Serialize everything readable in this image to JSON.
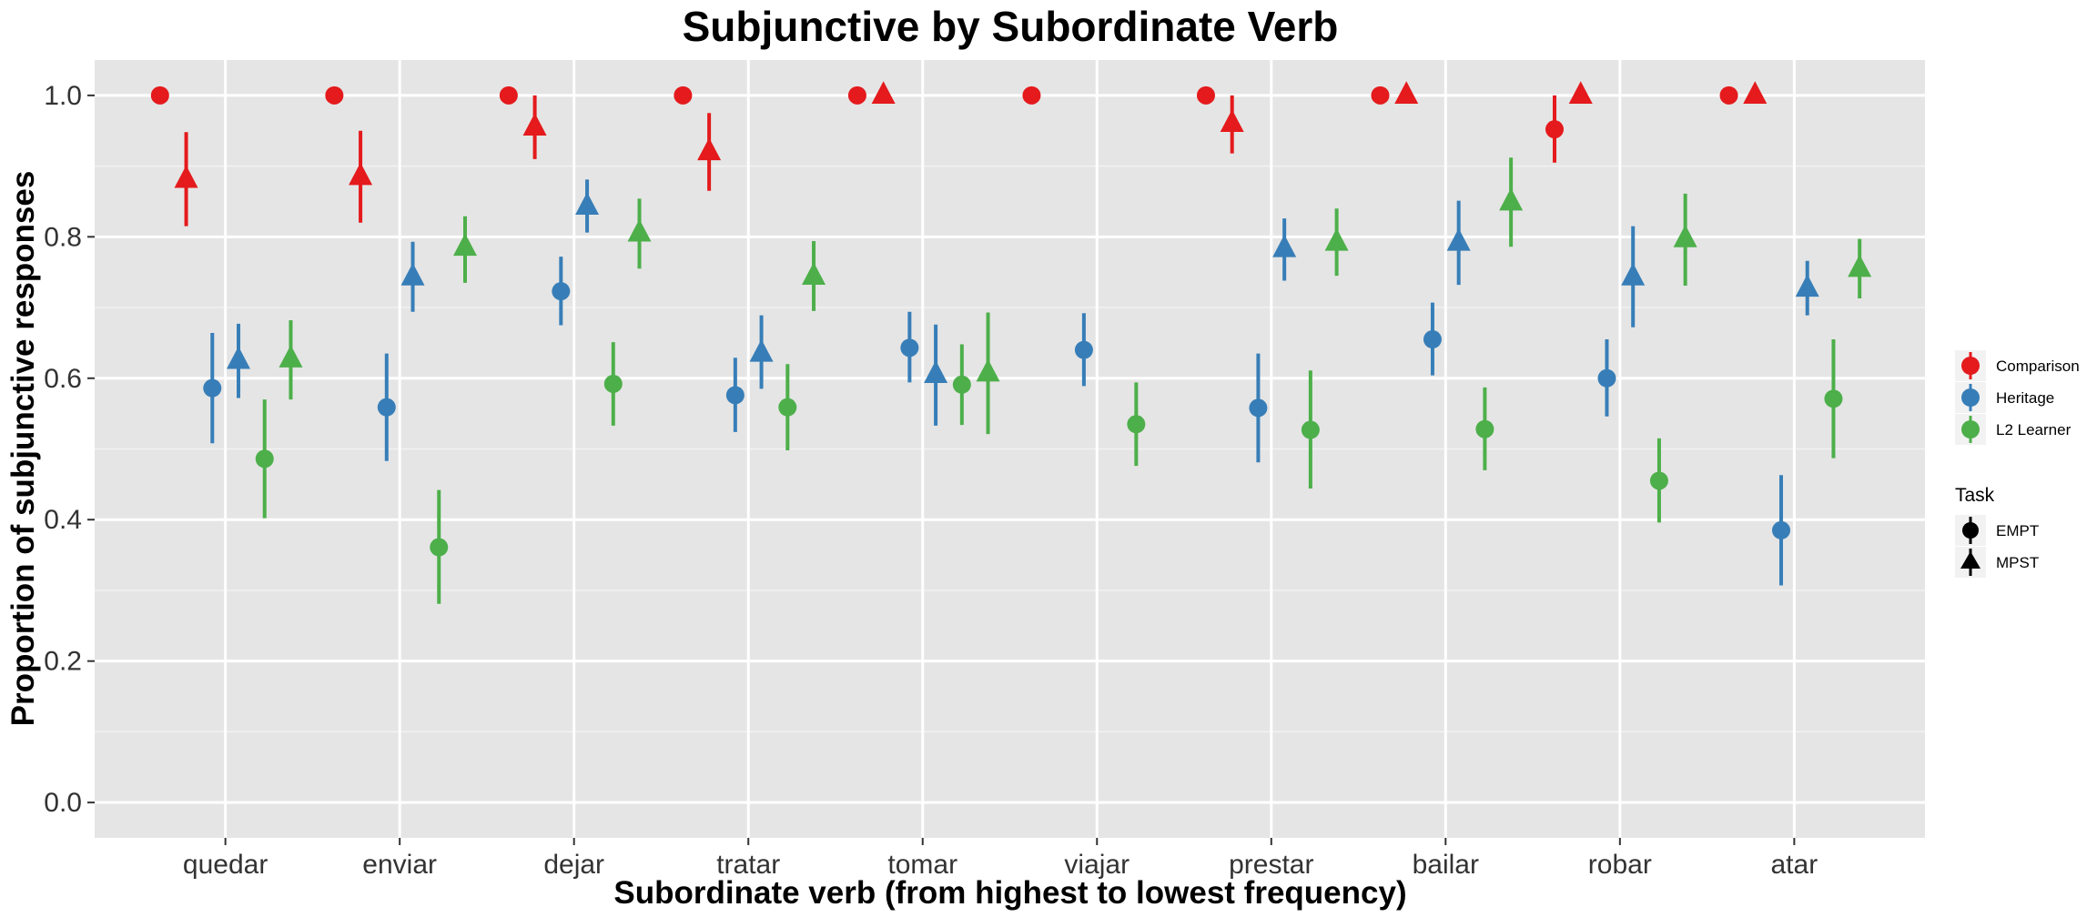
{
  "chart_data": {
    "type": "scatter",
    "title": "Subjunctive by Subordinate Verb",
    "xlabel": "Subordinate verb (from highest to lowest frequency)",
    "ylabel": "Proportion of subjunctive responses",
    "ylim": [
      -0.05,
      1.05
    ],
    "yticks": [
      "0.0",
      "0.2",
      "0.4",
      "0.6",
      "0.8",
      "1.0"
    ],
    "grid": true,
    "legend_position": "right",
    "categories": [
      "quedar",
      "enviar",
      "dejar",
      "tratar",
      "tomar",
      "viajar",
      "prestar",
      "bailar",
      "robar",
      "atar"
    ],
    "groups": [
      {
        "name": "Comparison",
        "color": "#e41a1c"
      },
      {
        "name": "Heritage",
        "color": "#377eb8"
      },
      {
        "name": "L2 Learner",
        "color": "#4daf4a"
      }
    ],
    "tasks": [
      {
        "name": "EMPT",
        "shape": "circle"
      },
      {
        "name": "MPST",
        "shape": "triangle"
      }
    ],
    "legend_task_title": "Task",
    "series": [
      {
        "group": "Comparison",
        "task": "EMPT",
        "values": [
          1.0,
          1.0,
          1.0,
          1.0,
          1.0,
          1.0,
          1.0,
          1.0,
          0.952,
          1.0
        ],
        "lower": [
          1.0,
          1.0,
          1.0,
          1.0,
          1.0,
          1.0,
          1.0,
          1.0,
          0.905,
          1.0
        ],
        "upper": [
          1.0,
          1.0,
          1.0,
          1.0,
          1.0,
          1.0,
          1.0,
          1.0,
          1.0,
          1.0
        ]
      },
      {
        "group": "Comparison",
        "task": "MPST",
        "values": [
          0.881,
          0.885,
          0.955,
          0.92,
          1.0,
          null,
          0.96,
          1.0,
          1.0,
          1.0
        ],
        "lower": [
          0.815,
          0.82,
          0.91,
          0.865,
          1.0,
          null,
          0.918,
          1.0,
          1.0,
          1.0
        ],
        "upper": [
          0.948,
          0.95,
          1.0,
          0.975,
          1.0,
          null,
          1.0,
          1.0,
          1.0,
          1.0
        ]
      },
      {
        "group": "Heritage",
        "task": "EMPT",
        "values": [
          0.586,
          0.559,
          0.723,
          0.576,
          0.643,
          0.64,
          0.558,
          0.655,
          0.6,
          0.385
        ],
        "lower": [
          0.508,
          0.483,
          0.675,
          0.524,
          0.594,
          0.589,
          0.481,
          0.604,
          0.546,
          0.307
        ],
        "upper": [
          0.664,
          0.635,
          0.772,
          0.629,
          0.694,
          0.692,
          0.635,
          0.707,
          0.655,
          0.463
        ]
      },
      {
        "group": "Heritage",
        "task": "MPST",
        "values": [
          0.625,
          0.743,
          0.843,
          0.635,
          0.605,
          null,
          0.783,
          0.792,
          0.743,
          0.727
        ],
        "lower": [
          0.572,
          0.694,
          0.806,
          0.585,
          0.533,
          null,
          0.738,
          0.732,
          0.672,
          0.689
        ],
        "upper": [
          0.677,
          0.793,
          0.881,
          0.689,
          0.676,
          null,
          0.826,
          0.851,
          0.815,
          0.766
        ]
      },
      {
        "group": "L2 Learner",
        "task": "EMPT",
        "values": [
          0.486,
          0.361,
          0.592,
          0.559,
          0.591,
          0.535,
          0.527,
          0.528,
          0.455,
          0.571
        ],
        "lower": [
          0.402,
          0.281,
          0.533,
          0.498,
          0.534,
          0.476,
          0.444,
          0.47,
          0.396,
          0.487
        ],
        "upper": [
          0.57,
          0.442,
          0.651,
          0.62,
          0.648,
          0.594,
          0.611,
          0.587,
          0.515,
          0.655
        ]
      },
      {
        "group": "L2 Learner",
        "task": "MPST",
        "values": [
          0.627,
          0.785,
          0.805,
          0.744,
          0.607,
          null,
          0.792,
          0.849,
          0.797,
          0.755
        ],
        "lower": [
          0.57,
          0.735,
          0.755,
          0.695,
          0.521,
          null,
          0.745,
          0.786,
          0.731,
          0.713
        ],
        "upper": [
          0.682,
          0.829,
          0.854,
          0.794,
          0.693,
          null,
          0.84,
          0.912,
          0.861,
          0.797
        ]
      }
    ]
  }
}
